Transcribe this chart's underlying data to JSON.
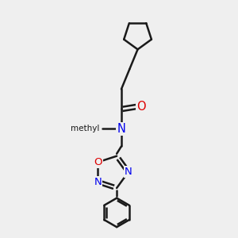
{
  "bg_color": "#efefef",
  "line_color": "#1a1a1a",
  "N_color": "#0000ee",
  "O_color": "#dd0000",
  "bond_width": 1.8,
  "figsize": [
    3.0,
    3.0
  ],
  "dpi": 100,
  "xlim": [
    0,
    10
  ],
  "ylim": [
    0,
    10
  ]
}
